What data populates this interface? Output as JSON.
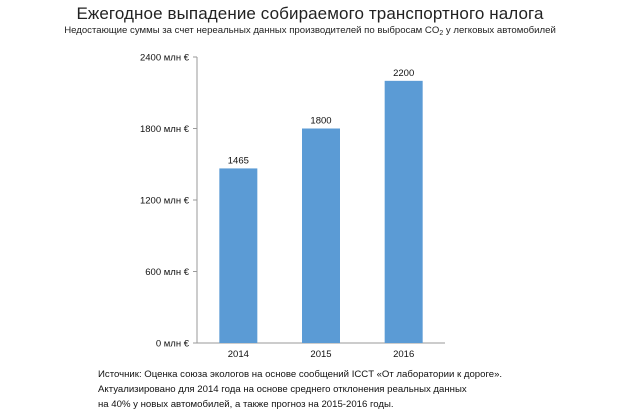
{
  "chart_data": {
    "type": "bar",
    "title": "Ежегодное выпадение собираемого транспортного налога",
    "subtitle_pre": "Недостающие суммы за счет нереальных данных производителей по выбросам CO",
    "subtitle_sub": "2",
    "subtitle_post": " у легковых автомобилей",
    "categories": [
      "2014",
      "2015",
      "2016"
    ],
    "values": [
      1465,
      1800,
      2200
    ],
    "data_labels": [
      "1465",
      "1800",
      "2200"
    ],
    "ylim": [
      0,
      2400
    ],
    "y_ticks": [
      0,
      600,
      1200,
      1800,
      2400
    ],
    "y_tick_labels": [
      "0 млн €",
      "600 млн €",
      "1200 млн €",
      "1800 млн €",
      "2400 млн €"
    ],
    "xlabel": "",
    "ylabel": "",
    "bar_color": "#5b9bd5",
    "grid": false,
    "legend": "none"
  },
  "source": {
    "line1": "Источник: Оценка союза экологов на основе сообщений ICCT «От лаборатории к дороге».",
    "line2": "Актуализировано для 2014 года на основе среднего отклонения реальных данных",
    "line3": "на 40% у новых автомобилей, а также прогноз на 2015-2016 годы."
  }
}
